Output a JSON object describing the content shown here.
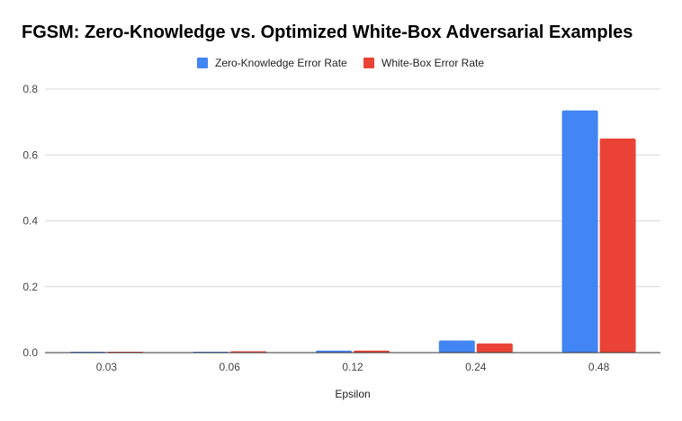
{
  "chart_data": {
    "type": "bar",
    "title": "FGSM: Zero-Knowledge vs. Optimized White-Box Adversarial Examples",
    "xlabel": "Epsilon",
    "ylabel": "",
    "categories": [
      "0.03",
      "0.06",
      "0.12",
      "0.24",
      "0.48"
    ],
    "series": [
      {
        "name": "Zero-Knowledge Error Rate",
        "color": "#4285f4",
        "values": [
          0.002,
          0.002,
          0.006,
          0.037,
          0.735
        ]
      },
      {
        "name": "White-Box Error Rate",
        "color": "#ea4335",
        "values": [
          0.002,
          0.004,
          0.006,
          0.028,
          0.65
        ]
      }
    ],
    "ylim": [
      0,
      0.8
    ],
    "yticks": [
      "0.0",
      "0.2",
      "0.4",
      "0.6",
      "0.8"
    ],
    "grid": true,
    "legend_position": "top"
  }
}
